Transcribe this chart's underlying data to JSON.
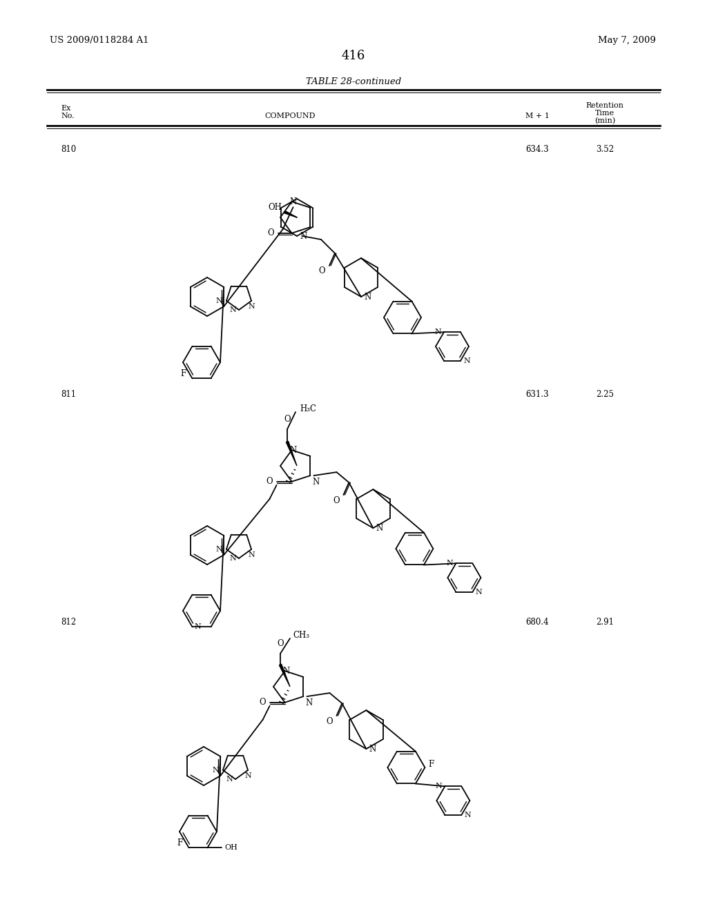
{
  "page_number": "416",
  "patent_number": "US 2009/0118284 A1",
  "date": "May 7, 2009",
  "table_title": "TABLE 28-continued",
  "rows": [
    {
      "ex": "810",
      "mplus1": "634.3",
      "ret_time": "3.52"
    },
    {
      "ex": "811",
      "mplus1": "631.3",
      "ret_time": "2.25"
    },
    {
      "ex": "812",
      "mplus1": "680.4",
      "ret_time": "2.91"
    }
  ],
  "bg_color": "#ffffff",
  "text_color": "#000000"
}
